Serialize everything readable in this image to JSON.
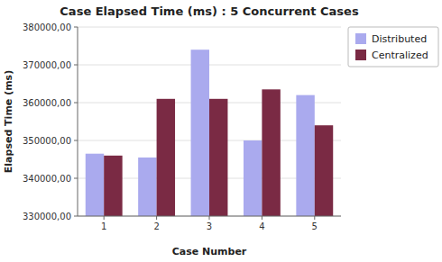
{
  "chart_data": {
    "type": "bar",
    "title": "Case Elapsed Time (ms) : 5 Concurrent Cases",
    "x_label": "Case Number",
    "y_label": "Elapsed Time (ms)",
    "categories": [
      "1",
      "2",
      "3",
      "4",
      "5"
    ],
    "series": [
      {
        "name": "Distributed",
        "color": "#aaaaee",
        "values": [
          346500,
          345500,
          374000,
          350000,
          362000
        ]
      },
      {
        "name": "Centralized",
        "color": "#7a2a44",
        "values": [
          346000,
          361000,
          361000,
          363500,
          354000
        ]
      }
    ],
    "ylim": [
      330000,
      380000
    ],
    "yticks": [
      {
        "value": 330000,
        "label": "330000,00"
      },
      {
        "value": 340000,
        "label": "340000,00"
      },
      {
        "value": 350000,
        "label": "350000,00"
      },
      {
        "value": 360000,
        "label": "360000,00"
      },
      {
        "value": 370000,
        "label": "370000,00"
      },
      {
        "value": 380000,
        "label": "380000,00"
      }
    ],
    "grid": true,
    "legend": "right"
  }
}
